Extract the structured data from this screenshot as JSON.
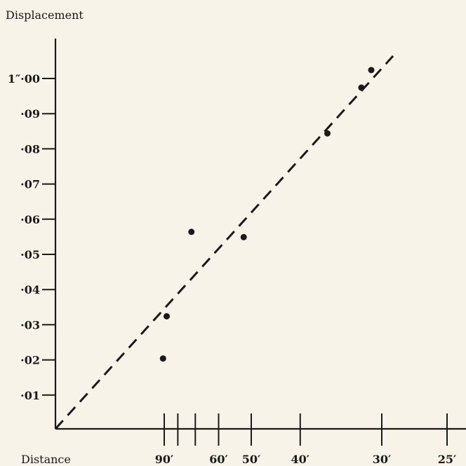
{
  "chart_data": {
    "type": "scatter",
    "title": "",
    "ylabel": "Displacement",
    "xlabel": "Distance",
    "ylim": [
      0,
      1.1
    ],
    "y_ticks": [
      {
        "value": 1.0,
        "label": "1″·00"
      },
      {
        "value": 0.09,
        "label": "·09"
      },
      {
        "value": 0.08,
        "label": "·08"
      },
      {
        "value": 0.07,
        "label": "·07"
      },
      {
        "value": 0.06,
        "label": "·06"
      },
      {
        "value": 0.05,
        "label": "·05"
      },
      {
        "value": 0.04,
        "label": "·04"
      },
      {
        "value": 0.03,
        "label": "·03"
      },
      {
        "value": 0.02,
        "label": "·02"
      },
      {
        "value": 0.01,
        "label": "·01"
      }
    ],
    "x_axis_note": "reciprocal scale (1/distance, distance in feet)",
    "x_ticks": [
      {
        "value": 90,
        "label": "90′"
      },
      {
        "value": 80,
        "label": ""
      },
      {
        "value": 70,
        "label": ""
      },
      {
        "value": 60,
        "label": "60′"
      },
      {
        "value": 50,
        "label": "50′"
      },
      {
        "value": 40,
        "label": "40′"
      },
      {
        "value": 30,
        "label": "30′"
      },
      {
        "value": 25,
        "label": "25′"
      }
    ],
    "points": [
      {
        "x": 91,
        "y": 0.02
      },
      {
        "x": 88,
        "y": 0.032
      },
      {
        "x": 72,
        "y": 0.056
      },
      {
        "x": 52,
        "y": 0.0545
      },
      {
        "x": 36,
        "y": 0.084
      },
      {
        "x": 32,
        "y": 0.097
      },
      {
        "x": 31,
        "y": 0.102
      }
    ],
    "reference_line": {
      "style": "dashed",
      "from": {
        "x": "infinity",
        "y": 0
      },
      "to": {
        "x": 29,
        "y": 0.106
      }
    },
    "colors": {
      "background": "#f7f3e8",
      "ink": "#1a1a1a"
    }
  }
}
